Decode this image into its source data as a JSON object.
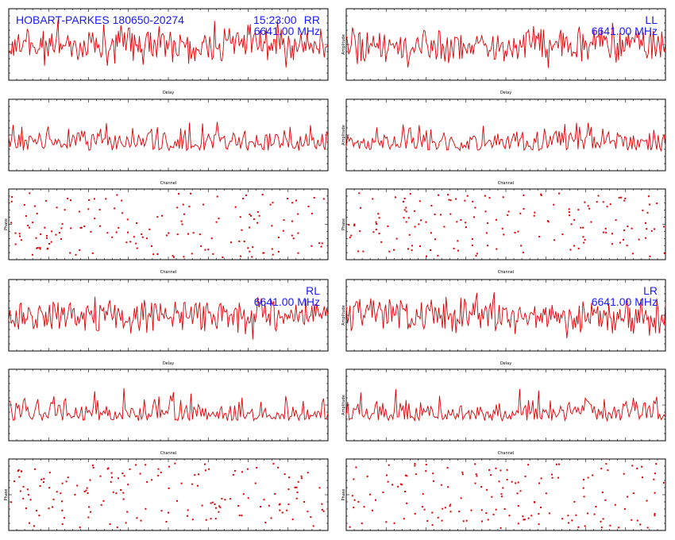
{
  "page": {
    "title": "HOBART-PARKES 180650-20274",
    "time": "15:23:00",
    "frequency": "6641.00 MHz",
    "colors": {
      "trace": "#e00000",
      "annotation": "#1a1aff",
      "axes": "#000000",
      "background": "#ffffff"
    }
  },
  "polarisations": [
    {
      "label": "RR",
      "show_freq": true,
      "show_title": true,
      "show_time": true,
      "amplitude_label": ""
    },
    {
      "label": "LL",
      "show_freq": true,
      "show_title": false,
      "show_time": false,
      "amplitude_label": "Amplitude"
    },
    {
      "label": "RL",
      "show_freq": true,
      "show_title": false,
      "show_time": false,
      "amplitude_label": ""
    },
    {
      "label": "LR",
      "show_freq": true,
      "show_title": false,
      "show_time": false,
      "amplitude_label": "Amplitude"
    }
  ],
  "chart_data": [
    {
      "type": "line",
      "panel": "RR-delay",
      "xlabel": "Delay",
      "ylabel": "",
      "series": [
        {
          "values": []
        }
      ]
    },
    {
      "type": "line",
      "panel": "RR-channel",
      "xlabel": "Channel",
      "ylabel": "",
      "series": [
        {
          "values": []
        }
      ]
    },
    {
      "type": "scatter",
      "panel": "RR-phase",
      "xlabel": "Channel",
      "ylabel": "Phase",
      "series": [
        {
          "values": []
        }
      ]
    },
    {
      "type": "line",
      "panel": "LL-delay",
      "xlabel": "Delay",
      "ylabel": "Amplitude",
      "series": [
        {
          "values": []
        }
      ]
    },
    {
      "type": "line",
      "panel": "LL-channel",
      "xlabel": "Channel",
      "ylabel": "Amplitude",
      "series": [
        {
          "values": []
        }
      ]
    },
    {
      "type": "scatter",
      "panel": "LL-phase",
      "xlabel": "Channel",
      "ylabel": "Phase",
      "series": [
        {
          "values": []
        }
      ]
    },
    {
      "type": "line",
      "panel": "RL-delay",
      "xlabel": "Delay",
      "ylabel": "",
      "series": [
        {
          "values": []
        }
      ]
    },
    {
      "type": "line",
      "panel": "RL-channel",
      "xlabel": "Channel",
      "ylabel": "",
      "series": [
        {
          "values": []
        }
      ]
    },
    {
      "type": "scatter",
      "panel": "RL-phase",
      "xlabel": "Channel",
      "ylabel": "Phase",
      "series": [
        {
          "values": []
        }
      ]
    },
    {
      "type": "line",
      "panel": "LR-delay",
      "xlabel": "Delay",
      "ylabel": "Amplitude",
      "series": [
        {
          "values": []
        }
      ]
    },
    {
      "type": "line",
      "panel": "LR-channel",
      "xlabel": "Channel",
      "ylabel": "Amplitude",
      "series": [
        {
          "values": []
        }
      ]
    },
    {
      "type": "scatter",
      "panel": "LR-phase",
      "xlabel": "Channel",
      "ylabel": "Phase",
      "series": [
        {
          "values": []
        }
      ]
    }
  ]
}
